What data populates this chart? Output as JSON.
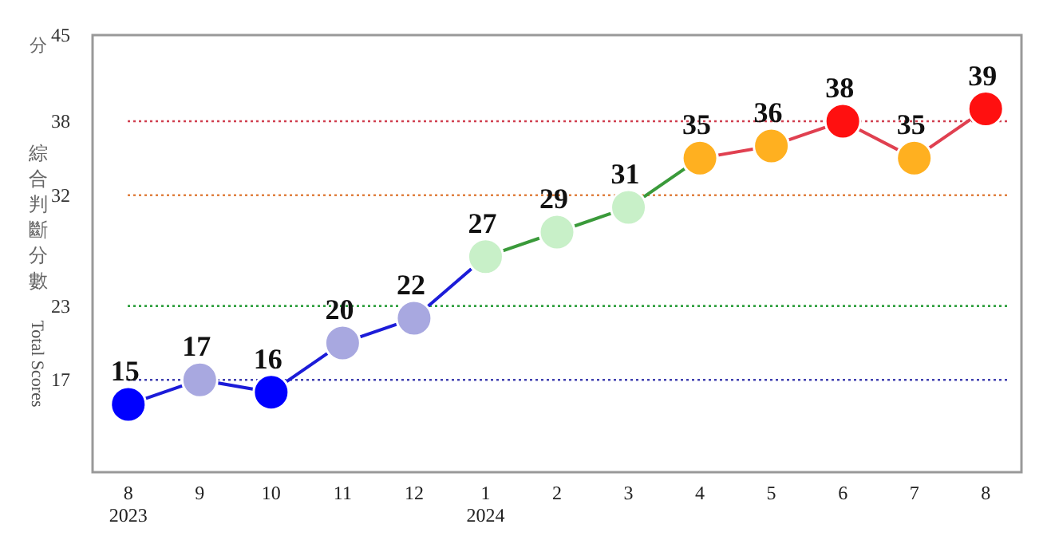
{
  "chart_data": {
    "type": "line",
    "ylabel": "綜合判斷分數",
    "annotations": [
      "分",
      "Total Scores"
    ],
    "categories": [
      "8\n2023",
      "9",
      "10",
      "11",
      "12",
      "1\n2024",
      "2",
      "3",
      "4",
      "5",
      "6",
      "7",
      "8"
    ],
    "ylim": [
      9.5,
      45
    ],
    "yticks": [
      17,
      23,
      32,
      38,
      45
    ],
    "grid": false,
    "marker": "circle",
    "line_style": "solid",
    "ref_lines": [
      {
        "axis": "y",
        "value": 38,
        "color": "#d04050",
        "line_style": "dotted"
      },
      {
        "axis": "y",
        "value": 32,
        "color": "#e08040",
        "line_style": "dotted"
      },
      {
        "axis": "y",
        "value": 23,
        "color": "#30a040",
        "line_style": "dotted"
      },
      {
        "axis": "y",
        "value": 17,
        "color": "#4040b0",
        "line_style": "dotted"
      }
    ],
    "series": [
      {
        "color": "#1c1cd8",
        "values": [
          15,
          17,
          16,
          20,
          22,
          27,
          null,
          null,
          null,
          null,
          null,
          null,
          null
        ],
        "colors": [
          "#0000ff",
          "#a8a8e0",
          "#0000ff",
          "#a8a8e0",
          "#a8a8e0",
          "#c8f0c8",
          null,
          null,
          null,
          null,
          null,
          null,
          null
        ],
        "value_labels": [
          "15",
          "17",
          "16",
          "20",
          "22",
          "27",
          null,
          null,
          null,
          null,
          null,
          null,
          null
        ]
      },
      {
        "color": "#3a9a3a",
        "values": [
          null,
          null,
          null,
          null,
          null,
          27,
          29,
          31,
          35,
          null,
          null,
          null,
          null
        ],
        "colors": [
          null,
          null,
          null,
          null,
          null,
          "#c8f0c8",
          "#c8f0c8",
          "#c8f0c8",
          "#ffb020",
          null,
          null,
          null,
          null
        ],
        "value_labels": [
          null,
          null,
          null,
          null,
          null,
          null,
          "29",
          "31",
          "35",
          null,
          null,
          null,
          null
        ]
      },
      {
        "color": "#e04050",
        "values": [
          null,
          null,
          null,
          null,
          null,
          null,
          null,
          null,
          35,
          36,
          38,
          35,
          39
        ],
        "colors": [
          null,
          null,
          null,
          null,
          null,
          null,
          null,
          null,
          "#ffb020",
          "#ffb020",
          "#ff1010",
          "#ffb020",
          "#ff1010"
        ],
        "value_labels": [
          null,
          null,
          null,
          null,
          null,
          null,
          null,
          null,
          null,
          "36",
          "38",
          "35",
          "39"
        ]
      }
    ]
  }
}
